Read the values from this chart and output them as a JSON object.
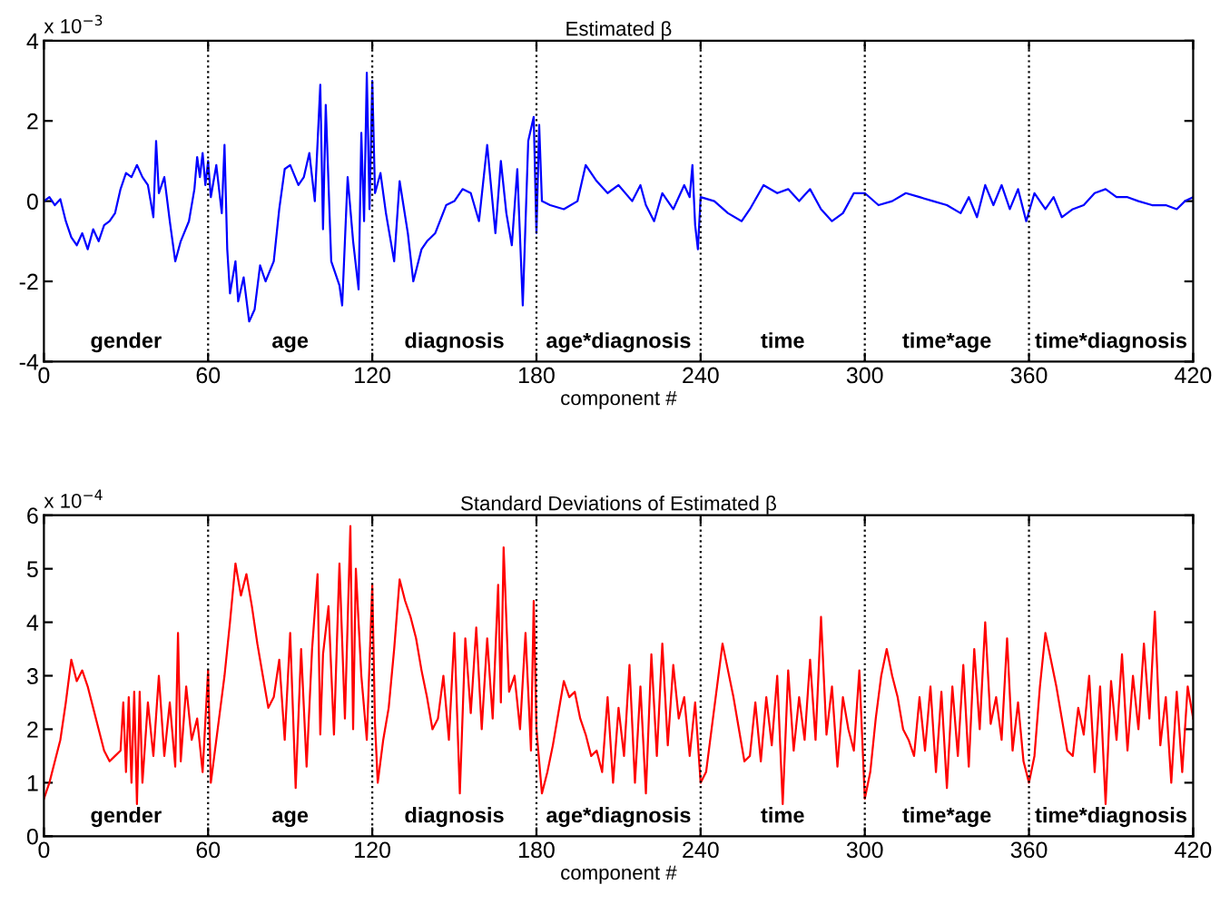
{
  "chart_data": [
    {
      "type": "line",
      "title": "Estimated β",
      "xlabel": "component #",
      "xlim": [
        0,
        420
      ],
      "xticks": [
        0,
        60,
        120,
        180,
        240,
        300,
        360,
        420
      ],
      "ylim": [
        -4,
        4
      ],
      "yticks": [
        -4,
        -2,
        0,
        2,
        4
      ],
      "grid": false,
      "marker": "none",
      "line_style": "solid",
      "ref_lines": [
        {
          "axis": "x",
          "value": 60,
          "color": "#000000",
          "line_style": "dotted"
        },
        {
          "axis": "x",
          "value": 120,
          "color": "#000000",
          "line_style": "dotted"
        },
        {
          "axis": "x",
          "value": 180,
          "color": "#000000",
          "line_style": "dotted"
        },
        {
          "axis": "x",
          "value": 240,
          "color": "#000000",
          "line_style": "dotted"
        },
        {
          "axis": "x",
          "value": 300,
          "color": "#000000",
          "line_style": "dotted"
        },
        {
          "axis": "x",
          "value": 360,
          "color": "#000000",
          "line_style": "dotted"
        }
      ],
      "annotations": [
        "x 10$^{−3}$",
        "gender",
        "age",
        "diagnosis",
        "age*diagnosis",
        "time",
        "time*age",
        "time*diagnosis"
      ],
      "series": [
        {
          "color": "#0000ff",
          "x": [
            0,
            2,
            4,
            6,
            8,
            10,
            12,
            14,
            16,
            18,
            20,
            22,
            24,
            26,
            28,
            30,
            32,
            34,
            36,
            38,
            40,
            41,
            42,
            44,
            46,
            48,
            50,
            53,
            55,
            56,
            57,
            58,
            59,
            60,
            61,
            63,
            65,
            66,
            67,
            68,
            70,
            71,
            73,
            75,
            77,
            79,
            81,
            84,
            86,
            88,
            90,
            93,
            95,
            97,
            99,
            101,
            102,
            103,
            105,
            108,
            109,
            111,
            113,
            115,
            116,
            117,
            118,
            119,
            120,
            121,
            123,
            125,
            128,
            130,
            133,
            135,
            138,
            140,
            143,
            147,
            150,
            153,
            156,
            159,
            162,
            165,
            167,
            169,
            171,
            173,
            175,
            177,
            179,
            180,
            181,
            182,
            185,
            190,
            195,
            198,
            202,
            206,
            210,
            215,
            218,
            220,
            223,
            226,
            230,
            234,
            236,
            237,
            238,
            239,
            240,
            245,
            250,
            255,
            258,
            263,
            268,
            272,
            276,
            280,
            284,
            288,
            292,
            296,
            300,
            305,
            310,
            315,
            320,
            325,
            330,
            335,
            338,
            341,
            344,
            347,
            350,
            353,
            356,
            359,
            362,
            366,
            369,
            372,
            376,
            380,
            384,
            388,
            392,
            396,
            400,
            405,
            410,
            414,
            417,
            420
          ],
          "values": [
            0,
            0.1,
            -0.1,
            0.05,
            -0.5,
            -0.9,
            -1.1,
            -0.8,
            -1.2,
            -0.7,
            -1.0,
            -0.6,
            -0.5,
            -0.3,
            0.3,
            0.7,
            0.6,
            0.9,
            0.6,
            0.4,
            -0.4,
            1.5,
            0.2,
            0.6,
            -0.5,
            -1.5,
            -1.0,
            -0.5,
            0.3,
            1.1,
            0.6,
            1.2,
            0.4,
            1.0,
            0.1,
            0.9,
            -0.3,
            1.4,
            -1.2,
            -2.3,
            -1.5,
            -2.5,
            -1.9,
            -3.0,
            -2.7,
            -1.6,
            -2.0,
            -1.5,
            -0.2,
            0.8,
            0.9,
            0.4,
            0.6,
            1.2,
            0.0,
            2.9,
            -0.7,
            2.4,
            -1.5,
            -2.1,
            -2.6,
            0.6,
            -1.0,
            -2.2,
            1.7,
            -0.5,
            3.2,
            -0.2,
            3.0,
            0.2,
            0.7,
            -0.3,
            -1.5,
            0.5,
            -0.8,
            -2.0,
            -1.2,
            -1.0,
            -0.8,
            -0.1,
            0.0,
            0.3,
            0.2,
            -0.5,
            1.4,
            -0.8,
            1.0,
            -0.3,
            -1.1,
            0.8,
            -2.6,
            1.5,
            2.1,
            -0.8,
            1.9,
            0.0,
            -0.1,
            -0.2,
            0.0,
            0.9,
            0.5,
            0.2,
            0.4,
            0.0,
            0.4,
            -0.1,
            -0.5,
            0.2,
            -0.2,
            0.4,
            0.1,
            0.9,
            -0.6,
            -1.2,
            0.1,
            0.0,
            -0.3,
            -0.5,
            -0.2,
            0.4,
            0.2,
            0.3,
            0.0,
            0.3,
            -0.2,
            -0.5,
            -0.3,
            0.2,
            0.2,
            -0.1,
            0.0,
            0.2,
            0.1,
            0.0,
            -0.1,
            -0.3,
            0.1,
            -0.4,
            0.4,
            -0.1,
            0.4,
            -0.2,
            0.3,
            -0.5,
            0.2,
            -0.2,
            0.1,
            -0.4,
            -0.2,
            -0.1,
            0.2,
            0.3,
            0.1,
            0.1,
            0.0,
            -0.1,
            -0.1,
            -0.2,
            0.0,
            0.1
          ]
        }
      ]
    },
    {
      "type": "line",
      "title": "Standard Deviations of Estimated β",
      "xlabel": "component #",
      "xlim": [
        0,
        420
      ],
      "xticks": [
        0,
        60,
        120,
        180,
        240,
        300,
        360,
        420
      ],
      "ylim": [
        0,
        6
      ],
      "yticks": [
        0,
        1,
        2,
        3,
        4,
        5,
        6
      ],
      "grid": false,
      "marker": "none",
      "line_style": "solid",
      "ref_lines": [
        {
          "axis": "x",
          "value": 60,
          "color": "#000000",
          "line_style": "dotted"
        },
        {
          "axis": "x",
          "value": 120,
          "color": "#000000",
          "line_style": "dotted"
        },
        {
          "axis": "x",
          "value": 180,
          "color": "#000000",
          "line_style": "dotted"
        },
        {
          "axis": "x",
          "value": 240,
          "color": "#000000",
          "line_style": "dotted"
        },
        {
          "axis": "x",
          "value": 300,
          "color": "#000000",
          "line_style": "dotted"
        },
        {
          "axis": "x",
          "value": 360,
          "color": "#000000",
          "line_style": "dotted"
        }
      ],
      "annotations": [
        "x 10$^{−4}$",
        "gender",
        "age",
        "diagnosis",
        "age*diagnosis",
        "time",
        "time*age",
        "time*diagnosis"
      ],
      "series": [
        {
          "color": "#ff0000",
          "x": [
            0,
            2,
            4,
            6,
            8,
            10,
            12,
            14,
            16,
            18,
            20,
            22,
            24,
            26,
            28,
            29,
            30,
            31,
            32,
            33,
            34,
            35,
            36,
            38,
            40,
            42,
            44,
            46,
            48,
            49,
            50,
            52,
            54,
            56,
            58,
            60,
            61,
            62,
            64,
            66,
            68,
            70,
            72,
            74,
            76,
            78,
            80,
            82,
            84,
            86,
            88,
            90,
            92,
            94,
            96,
            98,
            100,
            101,
            102,
            104,
            106,
            108,
            110,
            112,
            113,
            114,
            116,
            118,
            120,
            121,
            122,
            124,
            126,
            128,
            130,
            132,
            134,
            136,
            138,
            140,
            142,
            144,
            146,
            148,
            150,
            152,
            154,
            156,
            158,
            160,
            162,
            164,
            166,
            167,
            168,
            170,
            172,
            174,
            176,
            178,
            179,
            180,
            182,
            184,
            186,
            188,
            190,
            192,
            194,
            196,
            198,
            200,
            202,
            204,
            206,
            208,
            210,
            212,
            214,
            216,
            218,
            220,
            222,
            224,
            226,
            228,
            230,
            232,
            234,
            236,
            238,
            240,
            242,
            244,
            246,
            248,
            250,
            252,
            254,
            256,
            258,
            260,
            262,
            264,
            266,
            268,
            270,
            272,
            274,
            276,
            278,
            280,
            282,
            284,
            286,
            288,
            290,
            292,
            294,
            296,
            298,
            300,
            302,
            304,
            306,
            308,
            310,
            312,
            314,
            316,
            318,
            320,
            322,
            324,
            326,
            328,
            330,
            332,
            334,
            336,
            338,
            340,
            342,
            344,
            346,
            348,
            350,
            352,
            354,
            356,
            358,
            360,
            362,
            364,
            366,
            368,
            370,
            372,
            374,
            376,
            378,
            380,
            382,
            384,
            386,
            388,
            390,
            392,
            394,
            396,
            398,
            400,
            402,
            404,
            406,
            408,
            410,
            412,
            414,
            416,
            418,
            420
          ],
          "values": [
            0.7,
            1.0,
            1.4,
            1.8,
            2.5,
            3.3,
            2.9,
            3.1,
            2.8,
            2.4,
            2.0,
            1.6,
            1.4,
            1.5,
            1.6,
            2.5,
            1.2,
            2.6,
            1.0,
            2.7,
            0.6,
            2.7,
            1.0,
            2.5,
            1.5,
            3.0,
            1.5,
            2.5,
            1.3,
            3.8,
            1.4,
            2.8,
            1.8,
            2.2,
            1.2,
            3.1,
            1.0,
            1.4,
            2.2,
            3.0,
            4.0,
            5.1,
            4.5,
            4.9,
            4.3,
            3.6,
            3.0,
            2.4,
            2.6,
            3.3,
            1.8,
            3.8,
            0.9,
            3.5,
            1.3,
            3.5,
            4.9,
            1.9,
            3.4,
            4.3,
            1.9,
            5.1,
            2.2,
            5.8,
            2.0,
            5.0,
            3.0,
            1.8,
            4.7,
            2.1,
            1.0,
            1.8,
            2.4,
            3.5,
            4.8,
            4.4,
            4.1,
            3.7,
            3.1,
            2.6,
            2.0,
            2.2,
            3.0,
            1.8,
            3.8,
            0.8,
            3.7,
            2.3,
            3.9,
            2.0,
            3.7,
            2.2,
            4.7,
            2.5,
            5.4,
            2.7,
            3.0,
            2.0,
            3.8,
            1.6,
            4.4,
            2.0,
            0.8,
            1.2,
            1.7,
            2.3,
            2.9,
            2.6,
            2.7,
            2.2,
            1.9,
            1.5,
            1.6,
            1.2,
            2.6,
            1.0,
            2.4,
            1.5,
            3.2,
            1.0,
            2.8,
            0.8,
            3.4,
            1.5,
            3.6,
            1.7,
            3.2,
            2.2,
            2.6,
            1.5,
            2.5,
            1.0,
            1.2,
            2.0,
            2.8,
            3.6,
            3.1,
            2.6,
            2.0,
            1.4,
            1.5,
            2.5,
            1.4,
            2.6,
            1.7,
            3.0,
            0.6,
            3.1,
            1.6,
            2.6,
            1.8,
            3.3,
            1.8,
            4.1,
            1.9,
            2.8,
            1.3,
            2.6,
            2.0,
            1.6,
            3.1,
            0.7,
            1.2,
            2.2,
            3.0,
            3.5,
            3.0,
            2.6,
            2.0,
            1.8,
            1.5,
            2.6,
            1.6,
            2.8,
            1.2,
            2.7,
            0.9,
            2.8,
            1.5,
            3.2,
            1.3,
            3.5,
            2.0,
            4.0,
            2.1,
            2.6,
            1.8,
            3.7,
            1.6,
            2.5,
            1.4,
            1.0,
            1.5,
            2.8,
            3.8,
            3.3,
            2.8,
            2.2,
            1.6,
            1.5,
            2.4,
            1.9,
            3.0,
            1.2,
            2.8,
            0.6,
            2.9,
            1.8,
            3.4,
            1.6,
            3.0,
            2.0,
            3.6,
            2.2,
            4.2,
            1.7,
            2.6,
            1.0,
            2.7,
            1.2,
            2.8,
            2.2
          ]
        }
      ]
    }
  ]
}
